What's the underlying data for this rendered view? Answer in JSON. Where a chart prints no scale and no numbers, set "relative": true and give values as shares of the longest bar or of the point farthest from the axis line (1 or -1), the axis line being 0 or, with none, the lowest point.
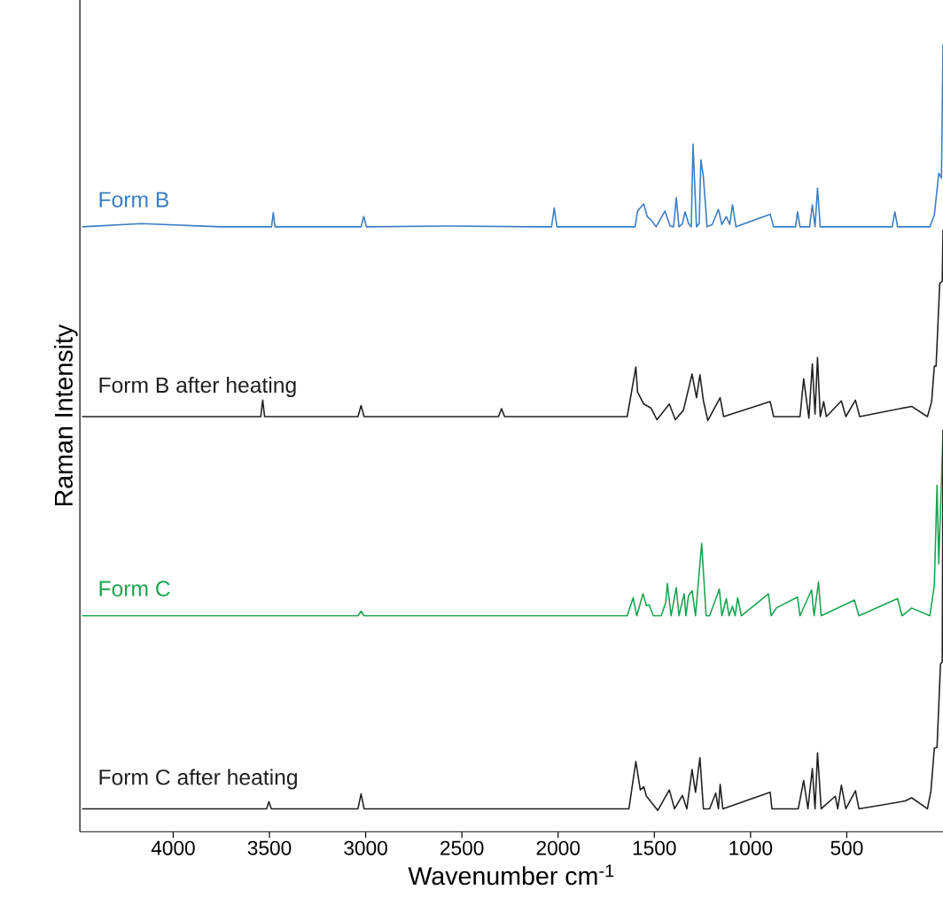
{
  "chart_data": {
    "type": "line",
    "relative": true,
    "xlabel": "Wavenumber cm$^{-1}$",
    "ylabel": "Raman Intensity",
    "xlim": [
      4485,
      0
    ],
    "xticks": [
      4000,
      3500,
      3000,
      2500,
      2000,
      1500,
      1000,
      500
    ],
    "series": [
      {
        "name": "Form B",
        "color": "#3a7dc4",
        "x": [
          4474,
          4164,
          3754,
          3489,
          3480,
          3471,
          3024,
          3010,
          2996,
          2568,
          2111,
          2034,
          2020,
          2006,
          1655,
          1600,
          1587,
          1555,
          1537,
          1518,
          1491,
          1445,
          1418,
          1400,
          1386,
          1372,
          1354,
          1340,
          1322,
          1308,
          1299,
          1281,
          1267,
          1258,
          1245,
          1226,
          1199,
          1167,
          1149,
          1126,
          1108,
          1094,
          1076,
          898,
          880,
          766,
          756,
          743,
          693,
          679,
          665,
          652,
          638,
          264,
          250,
          236,
          68,
          45,
          22,
          8,
          0
        ],
        "values": [
          0.768,
          0.772,
          0.768,
          0.768,
          0.786,
          0.768,
          0.768,
          0.781,
          0.768,
          0.769,
          0.768,
          0.768,
          0.792,
          0.768,
          0.768,
          0.768,
          0.788,
          0.797,
          0.781,
          0.777,
          0.768,
          0.788,
          0.769,
          0.768,
          0.805,
          0.768,
          0.772,
          0.787,
          0.772,
          0.768,
          0.873,
          0.768,
          0.772,
          0.853,
          0.831,
          0.768,
          0.771,
          0.79,
          0.771,
          0.781,
          0.771,
          0.796,
          0.768,
          0.784,
          0.768,
          0.768,
          0.787,
          0.768,
          0.768,
          0.796,
          0.768,
          0.817,
          0.768,
          0.768,
          0.787,
          0.768,
          0.768,
          0.783,
          0.836,
          0.83,
          1
        ]
      },
      {
        "name": "Form B after heating",
        "color": "#231f20",
        "x": [
          4474,
          3900,
          3545,
          3535,
          3525,
          3040,
          3024,
          3008,
          2310,
          2294,
          2278,
          1700,
          1641,
          1596,
          1587,
          1555,
          1518,
          1486,
          1422,
          1391,
          1349,
          1304,
          1281,
          1263,
          1245,
          1222,
          1158,
          1140,
          898,
          880,
          743,
          724,
          697,
          679,
          665,
          652,
          638,
          620,
          606,
          528,
          505,
          455,
          433,
          163,
          81,
          59,
          45,
          36,
          17,
          4,
          0
        ],
        "values": [
          0.527,
          0.527,
          0.527,
          0.548,
          0.527,
          0.527,
          0.541,
          0.527,
          0.527,
          0.537,
          0.527,
          0.527,
          0.527,
          0.59,
          0.558,
          0.543,
          0.538,
          0.523,
          0.543,
          0.523,
          0.535,
          0.581,
          0.551,
          0.58,
          0.547,
          0.522,
          0.551,
          0.527,
          0.546,
          0.527,
          0.527,
          0.575,
          0.525,
          0.594,
          0.53,
          0.602,
          0.527,
          0.546,
          0.527,
          0.547,
          0.527,
          0.548,
          0.527,
          0.54,
          0.527,
          0.546,
          0.591,
          0.591,
          0.696,
          0.699,
          0.764
        ]
      },
      {
        "name": "Form C",
        "color": "#1aa54f",
        "x": [
          4474,
          3040,
          3024,
          3008,
          1641,
          1610,
          1591,
          1559,
          1541,
          1527,
          1505,
          1464,
          1441,
          1432,
          1413,
          1386,
          1372,
          1345,
          1336,
          1322,
          1304,
          1286,
          1254,
          1231,
          1213,
          1162,
          1149,
          1126,
          1112,
          1094,
          1080,
          1067,
          1048,
          907,
          893,
          866,
          756,
          743,
          683,
          670,
          647,
          633,
          460,
          437,
          236,
          213,
          163,
          68,
          45,
          31,
          22,
          0
        ],
        "values": [
          0.274,
          0.274,
          0.28,
          0.274,
          0.274,
          0.297,
          0.274,
          0.302,
          0.287,
          0.288,
          0.274,
          0.274,
          0.291,
          0.315,
          0.274,
          0.31,
          0.274,
          0.302,
          0.274,
          0.3,
          0.306,
          0.274,
          0.366,
          0.274,
          0.274,
          0.308,
          0.274,
          0.296,
          0.274,
          0.286,
          0.274,
          0.297,
          0.274,
          0.302,
          0.274,
          0.284,
          0.298,
          0.274,
          0.307,
          0.274,
          0.317,
          0.274,
          0.294,
          0.274,
          0.296,
          0.274,
          0.284,
          0.274,
          0.313,
          0.44,
          0.34,
          0.507
        ]
      },
      {
        "name": "Form C after heating",
        "color": "#231f20",
        "x": [
          4474,
          3515,
          3503,
          3490,
          3040,
          3024,
          3008,
          1641,
          1632,
          1596,
          1573,
          1555,
          1541,
          1482,
          1422,
          1395,
          1354,
          1331,
          1304,
          1286,
          1263,
          1245,
          1213,
          1181,
          1167,
          1158,
          1144,
          898,
          889,
          752,
          724,
          702,
          679,
          665,
          652,
          633,
          560,
          547,
          528,
          505,
          455,
          437,
          195,
          163,
          81,
          63,
          45,
          31,
          13,
          4,
          0
        ],
        "values": [
          0.029,
          0.029,
          0.038,
          0.029,
          0.029,
          0.048,
          0.029,
          0.029,
          0.029,
          0.089,
          0.053,
          0.057,
          0.045,
          0.027,
          0.053,
          0.029,
          0.046,
          0.029,
          0.079,
          0.05,
          0.094,
          0.029,
          0.029,
          0.049,
          0.029,
          0.06,
          0.029,
          0.05,
          0.029,
          0.029,
          0.065,
          0.029,
          0.08,
          0.029,
          0.1,
          0.029,
          0.045,
          0.029,
          0.059,
          0.029,
          0.052,
          0.029,
          0.039,
          0.043,
          0.029,
          0.051,
          0.106,
          0.107,
          0.213,
          0.215,
          0.51
        ]
      }
    ]
  }
}
